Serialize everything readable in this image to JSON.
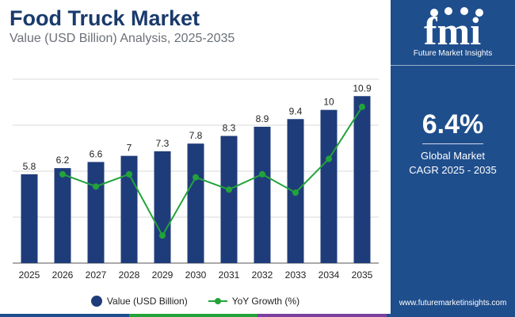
{
  "header": {
    "title": "Food Truck Market",
    "subtitle": "Value (USD Billion) Analysis, 2025-2035"
  },
  "side_panel": {
    "brand_short": "fmi",
    "brand_name": "Future Market Insights",
    "kpi_value": "6.4%",
    "kpi_label_line1": "Global Market",
    "kpi_label_line2": "CAGR 2025 - 2035",
    "website": "www.futuremarketinsights.com"
  },
  "legend": {
    "bar_label": "Value (USD Billion)",
    "line_label": "YoY Growth (%)"
  },
  "colors": {
    "bar": "#1f3c7a",
    "line": "#22a33a",
    "panel": "#1f4e8c",
    "strip": [
      "#1f4e8c",
      "#22a33a",
      "#7b3fa0",
      "#1f4e8c"
    ]
  },
  "chart_data": {
    "type": "bar",
    "title": "Food Truck Market",
    "subtitle": "Value (USD Billion) Analysis, 2025-2035",
    "categories": [
      "2025",
      "2026",
      "2027",
      "2028",
      "2029",
      "2030",
      "2031",
      "2032",
      "2033",
      "2034",
      "2035"
    ],
    "series": [
      {
        "name": "Value (USD Billion)",
        "type": "bar",
        "values": [
          5.8,
          6.2,
          6.6,
          7,
          7.3,
          7.8,
          8.3,
          8.9,
          9.4,
          10,
          10.9
        ],
        "labels": [
          "5.8",
          "6.2",
          "6.6",
          "7",
          "7.3",
          "7.8",
          "8.3",
          "8.9",
          "9.4",
          "10",
          "10.9"
        ]
      },
      {
        "name": "YoY Growth (%)",
        "type": "line",
        "values": [
          null,
          6.9,
          6.5,
          6.9,
          4.9,
          6.8,
          6.4,
          6.9,
          6.3,
          7.4,
          9.1
        ]
      }
    ],
    "ylim": [
      0,
      12
    ],
    "growth_ylim": [
      4,
      10
    ],
    "grid": true,
    "legend": "bottom"
  }
}
